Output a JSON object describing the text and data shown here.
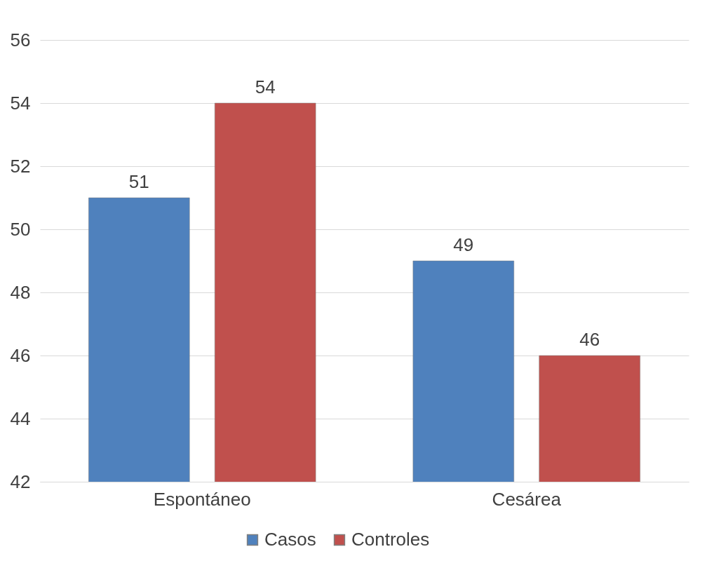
{
  "chart_data": {
    "type": "bar",
    "categories": [
      "Espontáneo",
      "Cesárea"
    ],
    "series": [
      {
        "name": "Casos",
        "color": "#4f81bd",
        "values": [
          51,
          49
        ]
      },
      {
        "name": "Controles",
        "color": "#c0504d",
        "values": [
          54,
          46
        ]
      }
    ],
    "ylim": [
      42,
      56
    ],
    "yticks": [
      42,
      44,
      46,
      48,
      50,
      52,
      54,
      56
    ],
    "grid": "y",
    "legend": "bottom",
    "data_labels": true
  }
}
